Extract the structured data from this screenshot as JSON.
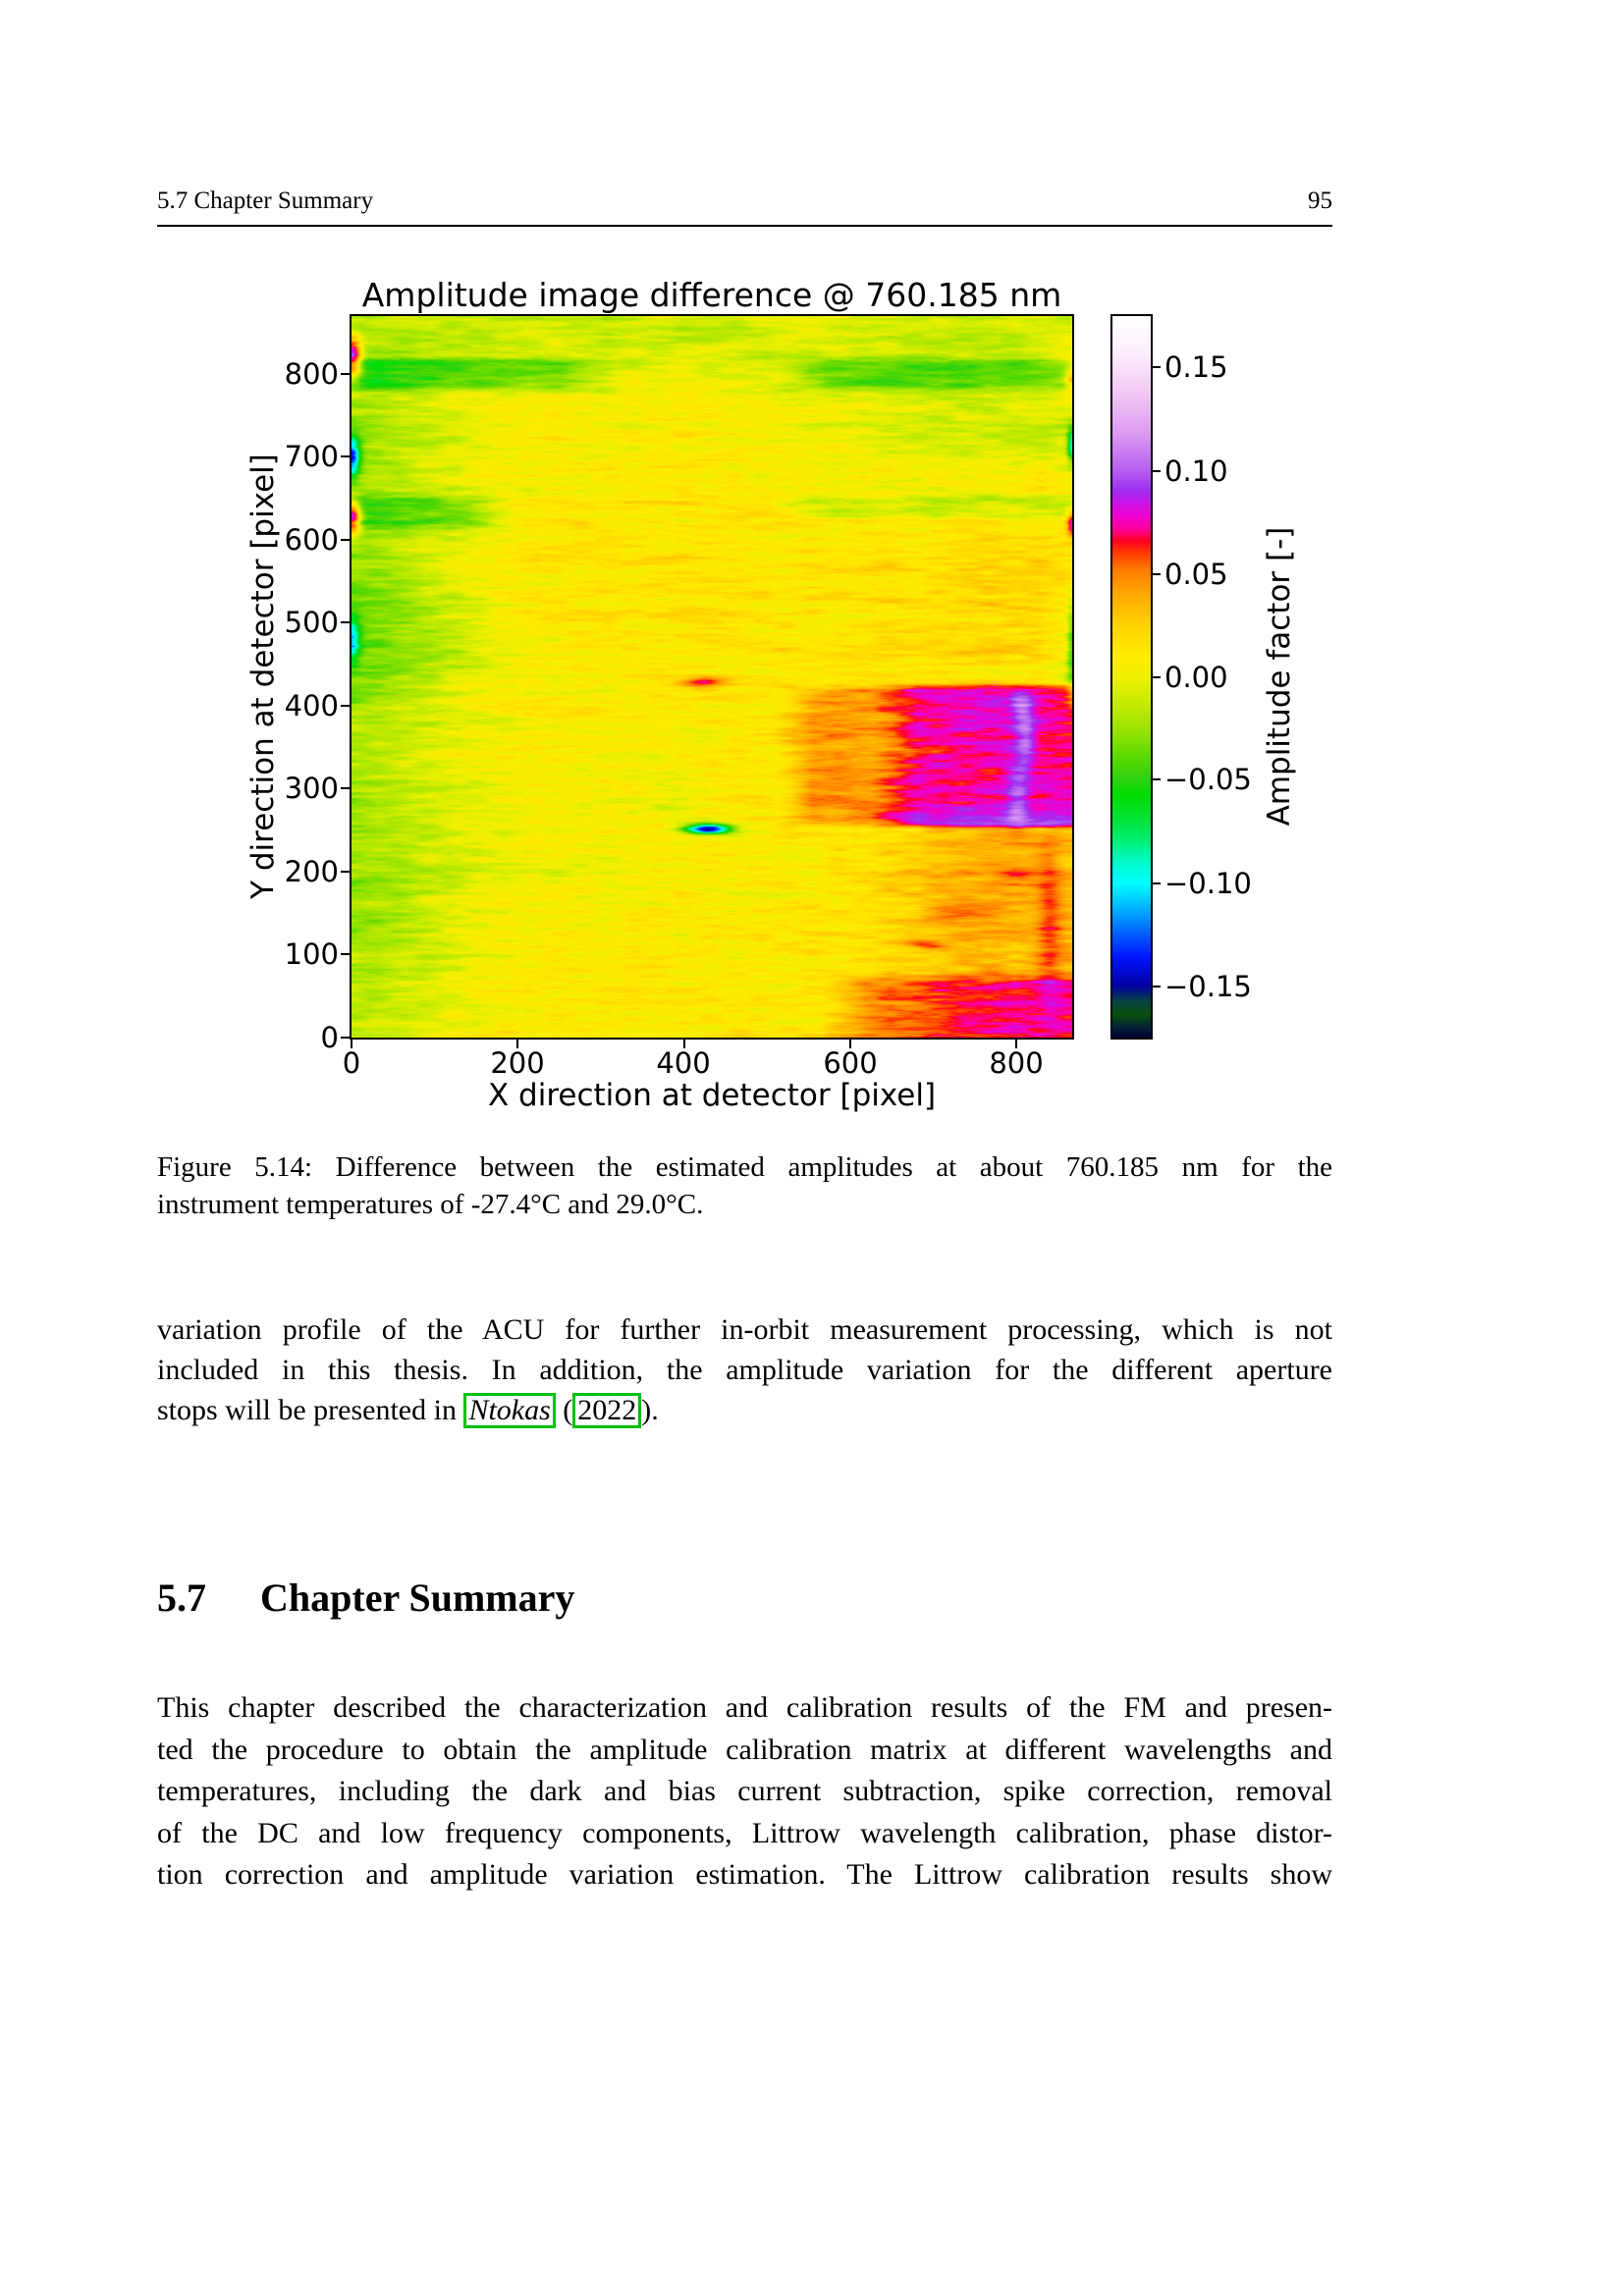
{
  "page": {
    "header_left": "5.7 Chapter Summary",
    "page_number": "95"
  },
  "figure": {
    "title": "Amplitude image difference @ 760.185 nm",
    "xlabel": "X direction at detector [pixel]",
    "ylabel": "Y direction at detector [pixel]",
    "colorbar_label": "Amplitude factor [-]",
    "x_tick_labels": [
      "0",
      "200",
      "400",
      "600",
      "800"
    ],
    "y_tick_labels": [
      "0",
      "100",
      "200",
      "300",
      "400",
      "500",
      "600",
      "700",
      "800"
    ],
    "cbar_tick_labels": [
      "0.15",
      "0.10",
      "0.05",
      "0.00",
      "−0.05",
      "−0.10",
      "−0.15"
    ],
    "chart_data": {
      "type": "heatmap",
      "title": "Amplitude image difference @ 760.185 nm",
      "xlabel": "X direction at detector [pixel]",
      "ylabel": "Y direction at detector [pixel]",
      "colorbar_label": "Amplitude factor [-]",
      "x_range": [
        0,
        866
      ],
      "y_range": [
        0,
        870
      ],
      "x_tick_values": [
        0,
        200,
        400,
        600,
        800
      ],
      "y_tick_values": [
        0,
        100,
        200,
        300,
        400,
        500,
        600,
        700,
        800
      ],
      "colorbar_tick_values": [
        0.15,
        0.1,
        0.05,
        0.0,
        -0.05,
        -0.1,
        -0.15
      ],
      "value_range": [
        -0.175,
        0.175
      ],
      "colormap_stops": [
        [
          -0.175,
          "#000030"
        ],
        [
          -0.17,
          "#02203a"
        ],
        [
          -0.164,
          "#0a500a"
        ],
        [
          -0.157,
          "#064048"
        ],
        [
          -0.15,
          "#0000a0"
        ],
        [
          -0.136,
          "#0014ff"
        ],
        [
          -0.124,
          "#0064ff"
        ],
        [
          -0.112,
          "#00b4ff"
        ],
        [
          -0.1,
          "#00ffff"
        ],
        [
          -0.09,
          "#00fac8"
        ],
        [
          -0.081,
          "#00f080"
        ],
        [
          -0.07,
          "#00e33c"
        ],
        [
          -0.057,
          "#00dd00"
        ],
        [
          -0.05,
          "#2ed212"
        ],
        [
          -0.04,
          "#55d800"
        ],
        [
          -0.025,
          "#9ce400"
        ],
        [
          -0.012,
          "#c8ec00"
        ],
        [
          0.0,
          "#f0f000"
        ],
        [
          0.01,
          "#ffed00"
        ],
        [
          0.025,
          "#ffd200"
        ],
        [
          0.04,
          "#ffa800"
        ],
        [
          0.0517,
          "#ff7d00"
        ],
        [
          0.06,
          "#ff3c00"
        ],
        [
          0.066,
          "#ff0020"
        ],
        [
          0.071,
          "#ff0090"
        ],
        [
          0.078,
          "#ee00d0"
        ],
        [
          0.085,
          "#c618e8"
        ],
        [
          0.0906,
          "#9b30f0"
        ],
        [
          0.1,
          "#b55ff0"
        ],
        [
          0.119,
          "#dd9ef2"
        ],
        [
          0.138,
          "#f3c9f4"
        ],
        [
          0.157,
          "#fdeefd"
        ],
        [
          0.175,
          "#ffffff"
        ]
      ],
      "value_grid_note": "rows top (y=870) to bottom (y=0), 21 columns x=0..866",
      "value_grid": [
        [
          -0.02,
          -0.018,
          -0.015,
          -0.012,
          -0.01,
          -0.01,
          -0.012,
          -0.01,
          -0.008,
          -0.01,
          -0.012,
          -0.01,
          -0.008,
          -0.006,
          -0.008,
          -0.01,
          -0.012,
          -0.014,
          -0.012,
          -0.01,
          -0.01
        ],
        [
          -0.025,
          -0.02,
          -0.015,
          -0.01,
          -0.005,
          0.0,
          -0.005,
          -0.008,
          -0.005,
          -0.002,
          -0.005,
          -0.008,
          -0.01,
          -0.008,
          -0.01,
          -0.012,
          -0.014,
          -0.014,
          -0.012,
          -0.01,
          0.005
        ],
        [
          -0.02,
          -0.015,
          -0.01,
          0.0,
          0.005,
          0.008,
          0.005,
          0.002,
          0.005,
          0.008,
          0.005,
          0.002,
          0.0,
          -0.002,
          -0.005,
          -0.008,
          -0.01,
          -0.01,
          -0.008,
          -0.005,
          0.0
        ],
        [
          -0.028,
          -0.02,
          -0.012,
          -0.005,
          0.003,
          0.008,
          0.01,
          0.008,
          0.01,
          0.012,
          0.01,
          0.008,
          0.005,
          0.002,
          0.0,
          -0.003,
          -0.005,
          -0.006,
          -0.008,
          -0.01,
          -0.015
        ],
        [
          -0.025,
          -0.018,
          -0.01,
          -0.002,
          0.005,
          0.01,
          0.012,
          0.01,
          0.012,
          0.014,
          0.012,
          0.01,
          0.008,
          0.01,
          0.008,
          0.005,
          0.003,
          0.005,
          0.008,
          0.01,
          0.005
        ],
        [
          -0.028,
          -0.02,
          -0.012,
          -0.005,
          0.002,
          0.008,
          0.01,
          0.012,
          0.014,
          0.012,
          0.014,
          0.012,
          0.01,
          0.012,
          0.01,
          0.012,
          0.01,
          0.012,
          0.014,
          0.012,
          0.01
        ],
        [
          -0.028,
          -0.02,
          -0.01,
          0.0,
          0.008,
          0.012,
          0.014,
          0.012,
          0.014,
          0.016,
          0.014,
          0.012,
          0.014,
          0.016,
          0.014,
          0.012,
          0.014,
          0.016,
          0.018,
          0.02,
          0.014
        ],
        [
          -0.03,
          -0.025,
          -0.015,
          -0.005,
          0.005,
          0.01,
          0.012,
          0.014,
          0.012,
          0.014,
          0.016,
          0.014,
          0.012,
          0.014,
          0.016,
          0.018,
          0.016,
          0.018,
          0.02,
          0.022,
          0.01
        ],
        [
          -0.04,
          -0.034,
          -0.024,
          -0.012,
          0.0,
          0.008,
          0.01,
          0.012,
          0.01,
          0.012,
          0.014,
          0.012,
          0.014,
          0.012,
          0.014,
          0.016,
          0.018,
          0.02,
          0.022,
          0.02,
          0.0
        ],
        [
          -0.034,
          -0.028,
          -0.018,
          -0.008,
          0.002,
          0.008,
          0.01,
          0.008,
          0.01,
          0.012,
          0.01,
          0.012,
          0.014,
          0.012,
          0.014,
          0.016,
          0.018,
          0.02,
          0.018,
          0.016,
          0.0
        ],
        [
          -0.02,
          -0.015,
          -0.008,
          0.0,
          0.005,
          0.008,
          0.006,
          0.008,
          0.01,
          0.008,
          0.01,
          0.012,
          0.014,
          0.012,
          0.014,
          0.012,
          0.014,
          0.015,
          0.014,
          0.013,
          0.012
        ],
        [
          -0.018,
          -0.012,
          -0.006,
          0.002,
          0.006,
          0.008,
          0.01,
          0.008,
          0.006,
          0.008,
          0.01,
          0.012,
          0.01,
          0.012,
          0.014,
          0.012,
          0.014,
          0.013,
          0.014,
          0.012,
          0.013
        ],
        [
          -0.022,
          -0.016,
          -0.008,
          0.0,
          0.004,
          0.006,
          0.008,
          0.006,
          0.004,
          -0.004,
          0.006,
          0.01,
          0.012,
          0.01,
          0.012,
          0.014,
          0.012,
          0.014,
          0.013,
          0.012,
          0.012
        ],
        [
          -0.025,
          -0.02,
          -0.012,
          -0.005,
          0.0,
          0.004,
          0.006,
          0.004,
          0.006,
          0.004,
          0.006,
          0.008,
          0.01,
          0.012,
          0.016,
          0.022,
          0.03,
          0.036,
          0.038,
          0.036,
          0.034
        ],
        [
          -0.028,
          -0.022,
          -0.014,
          -0.006,
          0.0,
          0.004,
          0.006,
          0.008,
          0.006,
          0.008,
          0.006,
          0.008,
          0.01,
          0.012,
          0.016,
          0.024,
          0.032,
          0.038,
          0.04,
          0.038,
          0.035
        ],
        [
          -0.025,
          -0.02,
          -0.012,
          -0.004,
          0.002,
          0.006,
          0.008,
          0.006,
          0.008,
          0.01,
          0.008,
          0.006,
          0.008,
          0.012,
          0.016,
          0.022,
          0.03,
          0.036,
          0.038,
          0.036,
          0.034
        ],
        [
          -0.022,
          -0.018,
          -0.01,
          -0.002,
          0.004,
          0.008,
          0.01,
          0.008,
          0.01,
          0.008,
          0.01,
          0.008,
          0.01,
          0.012,
          0.016,
          0.022,
          0.028,
          0.034,
          0.036,
          0.035,
          0.033
        ],
        [
          -0.02,
          -0.015,
          -0.008,
          0.0,
          0.005,
          0.008,
          0.01,
          0.012,
          0.01,
          0.012,
          0.01,
          0.012,
          0.01,
          0.014,
          0.018,
          0.024,
          0.032,
          0.04,
          0.044,
          0.044,
          0.042
        ],
        [
          -0.012,
          -0.008,
          -0.002,
          0.004,
          0.008,
          0.01,
          0.012,
          0.01,
          0.012,
          0.014,
          0.012,
          0.014,
          0.012,
          0.015,
          0.02,
          0.026,
          0.034,
          0.042,
          0.046,
          0.045,
          0.043
        ]
      ],
      "features_ellipse": [
        {
          "x": 0,
          "y": 820,
          "rx": 11,
          "ry": 24,
          "v": 0.13
        },
        {
          "x": 0,
          "y": 700,
          "rx": 9,
          "ry": 22,
          "v": -0.11
        },
        {
          "x": 0,
          "y": 628,
          "rx": 10,
          "ry": 20,
          "v": 0.13
        },
        {
          "x": 0,
          "y": 480,
          "rx": 9,
          "ry": 28,
          "v": -0.07
        },
        {
          "x": 866,
          "y": 795,
          "rx": 9,
          "ry": 14,
          "v": 0.06
        },
        {
          "x": 866,
          "y": 620,
          "rx": 7,
          "ry": 16,
          "v": 0.075
        },
        {
          "x": 866,
          "y": 715,
          "rx": 6,
          "ry": 20,
          "v": -0.095
        },
        {
          "x": 866,
          "y": 470,
          "rx": 6,
          "ry": 55,
          "v": -0.05
        },
        {
          "x": 420,
          "y": 428,
          "rx": 30,
          "ry": 7,
          "v": 0.06
        },
        {
          "x": 428,
          "y": 252,
          "rx": 28,
          "ry": 6,
          "v": -0.17
        },
        {
          "x": 800,
          "y": 290,
          "rx": 13,
          "ry": 40,
          "v": 0.03
        },
        {
          "x": 810,
          "y": 360,
          "rx": 11,
          "ry": 32,
          "v": 0.03
        },
        {
          "x": 805,
          "y": 400,
          "rx": 12,
          "ry": 18,
          "v": 0.03
        },
        {
          "x": 800,
          "y": 195,
          "rx": 32,
          "ry": 13,
          "v": 0.02
        },
        {
          "x": 690,
          "y": 113,
          "rx": 24,
          "ry": 6,
          "v": 0.035
        },
        {
          "x": 838,
          "y": 140,
          "rx": 15,
          "ry": 95,
          "v": 0.028
        },
        {
          "x": 730,
          "y": 150,
          "rx": 40,
          "ry": 8,
          "v": 0.03
        }
      ],
      "features_rect": [
        {
          "x0": 555,
          "x1": 866,
          "y0": 258,
          "y1": 424,
          "sx": 45,
          "sy": 6,
          "v": 0.03
        },
        {
          "x0": 680,
          "x1": 866,
          "y0": 258,
          "y1": 424,
          "sx": 55,
          "sy": 6,
          "v": 0.03
        },
        {
          "x0": 0,
          "x1": 250,
          "y0": 786,
          "y1": 814,
          "sx": 70,
          "sy": 9,
          "v": -0.034
        },
        {
          "x0": 570,
          "x1": 866,
          "y0": 786,
          "y1": 814,
          "sx": 70,
          "sy": 9,
          "v": -0.028
        },
        {
          "x0": 0,
          "x1": 140,
          "y0": 620,
          "y1": 648,
          "sx": 55,
          "sy": 9,
          "v": -0.028
        },
        {
          "x0": 560,
          "x1": 866,
          "y0": 630,
          "y1": 650,
          "sx": 60,
          "sy": 7,
          "v": -0.022
        },
        {
          "x0": 555,
          "x1": 866,
          "y0": 422,
          "y1": 428,
          "sx": 35,
          "sy": 2,
          "v": -0.018
        },
        {
          "x0": 620,
          "x1": 866,
          "y0": 0,
          "y1": 65,
          "sx": 55,
          "sy": 16,
          "v": 0.025
        }
      ],
      "noise": {
        "seed": 7,
        "layers": [
          {
            "cw": 26,
            "ch": 3,
            "amp": 0.011
          },
          {
            "cw": 110,
            "ch": 7,
            "amp": 0.007
          },
          {
            "cw": 9,
            "ch": 1,
            "amp": 0.005
          }
        ]
      }
    }
  },
  "caption": {
    "line1": "Figure 5.14: Difference between the estimated amplitudes at about 760.185 nm for the",
    "line2": "instrument temperatures of -27.4°C and 29.0°C."
  },
  "body": {
    "para1": {
      "line1": "variation profile of the ACU for further in-orbit measurement processing, which is not",
      "line2": "included in this thesis. In addition, the amplitude variation for the different aperture",
      "line3_prefix": "stops will be presented in",
      "cite_author": "Ntokas",
      "cite_open": "(",
      "cite_year": "2022",
      "cite_close": ")."
    },
    "section": {
      "number": "5.7",
      "title": "Chapter Summary"
    },
    "para2": {
      "line1": "This chapter described the characterization and calibration results of the FM and presen-",
      "line2": "ted the procedure to obtain the amplitude calibration matrix at different wavelengths and",
      "line3": "temperatures, including the dark and bias current subtraction, spike correction, removal",
      "line4": "of the DC and low frequency components, Littrow wavelength calibration, phase distor-",
      "line5": "tion correction and amplitude variation estimation. The Littrow calibration results show"
    }
  }
}
